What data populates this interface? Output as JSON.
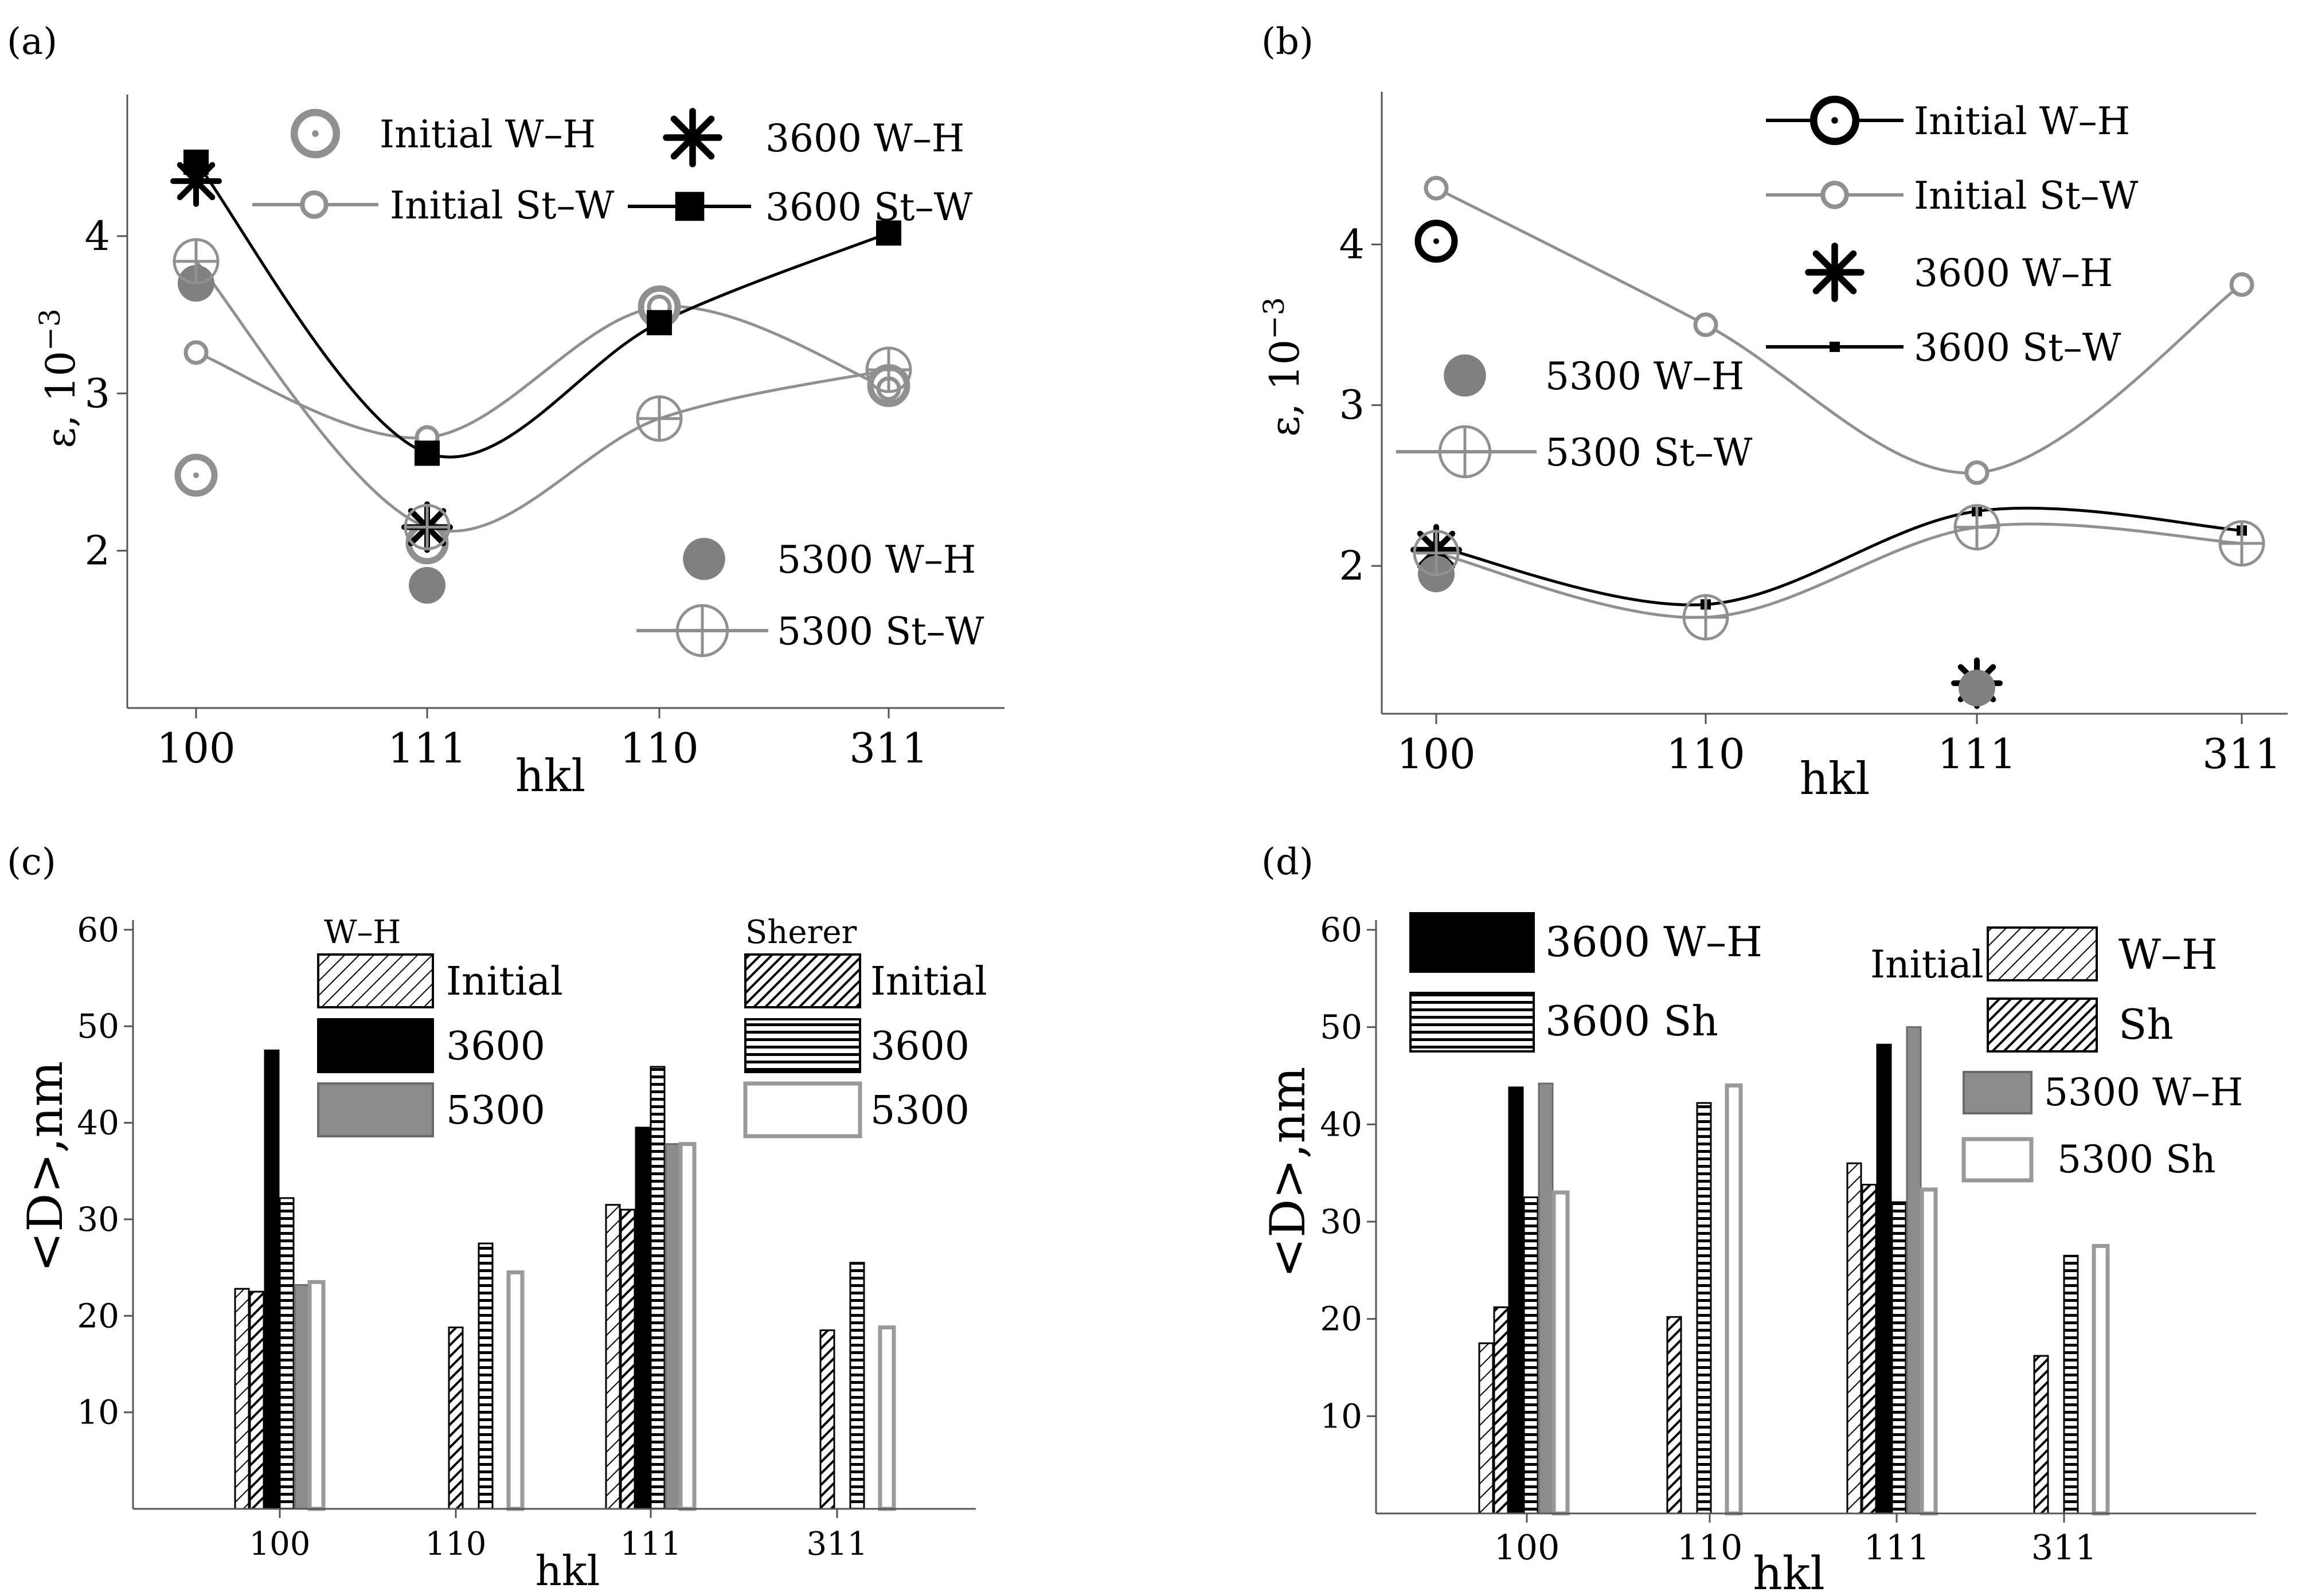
{
  "chart_data": [
    {
      "panel": "(a)",
      "type": "line",
      "xlabel": "hkl",
      "ylabel_base": "ε, 10",
      "ylabel_exp": "−3",
      "categories": [
        "100",
        "111",
        "110",
        "311"
      ],
      "ylim": [
        1.0,
        4.9
      ],
      "yticks": [
        2,
        3,
        4
      ],
      "series": [
        {
          "name": "Initial W–H",
          "marker": "ring-dot",
          "line": false,
          "color": "#909090",
          "values": [
            2.48,
            2.05,
            3.55,
            3.05
          ]
        },
        {
          "name": "3600  W–H",
          "marker": "asterisk",
          "line": false,
          "color": "#000000",
          "values": [
            4.35,
            2.15,
            null,
            null
          ]
        },
        {
          "name": "Initial St–W",
          "marker": "open-circle",
          "line": true,
          "color": "#909090",
          "values": [
            3.26,
            2.72,
            3.55,
            3.03
          ]
        },
        {
          "name": "3600  St–W",
          "marker": "square",
          "line": true,
          "color": "#000000",
          "values": [
            4.47,
            2.62,
            3.45,
            4.02
          ]
        },
        {
          "name": "5300 W–H",
          "marker": "filled-circle",
          "line": false,
          "color": "#808080",
          "values": [
            3.7,
            1.78,
            null,
            null
          ]
        },
        {
          "name": "5300  St–W",
          "marker": "circle-plus",
          "line": true,
          "color": "#909090",
          "values": [
            3.84,
            2.15,
            2.84,
            3.15
          ]
        }
      ]
    },
    {
      "panel": "(b)",
      "type": "line",
      "xlabel": "hkl",
      "ylabel_base": "ε, 10",
      "ylabel_exp": "−3",
      "categories": [
        "100",
        "110",
        "111",
        "311"
      ],
      "ylim": [
        1.08,
        4.95
      ],
      "yticks": [
        2,
        3,
        4
      ],
      "series": [
        {
          "name": "Initial W–H",
          "marker": "ring-dot",
          "line": true,
          "color": "#000000",
          "values": [
            4.02,
            null,
            null,
            null
          ]
        },
        {
          "name": "Initial St–W",
          "marker": "open-circle",
          "line": true,
          "color": "#909090",
          "values": [
            4.35,
            3.5,
            2.58,
            3.75
          ]
        },
        {
          "name": "3600  W–H",
          "marker": "asterisk",
          "line": false,
          "color": "#000000",
          "values": [
            2.1,
            null,
            1.27,
            null
          ]
        },
        {
          "name": "3600  St–W",
          "marker": "small-square",
          "line": true,
          "color": "#000000",
          "values": [
            2.12,
            1.76,
            2.34,
            2.22
          ]
        },
        {
          "name": "5300 W–H",
          "marker": "filled-circle",
          "line": false,
          "color": "#808080",
          "values": [
            1.95,
            null,
            1.24,
            null
          ]
        },
        {
          "name": "5300  St–W",
          "marker": "circle-plus",
          "line": true,
          "color": "#909090",
          "values": [
            2.08,
            1.68,
            2.24,
            2.14
          ]
        }
      ]
    },
    {
      "panel": "(c)",
      "type": "bar",
      "xlabel": "hkl",
      "ylabel": "<D>,nm",
      "categories": [
        "100",
        "110",
        "111",
        "311"
      ],
      "ylim": [
        0,
        61
      ],
      "yticks": [
        10,
        20,
        30,
        40,
        50,
        60
      ],
      "legend_groups": [
        {
          "title": "W–H",
          "entries": [
            "Initial",
            "3600",
            "5300"
          ]
        },
        {
          "title": "Sherer",
          "entries": [
            "Initial",
            "3600",
            "5300"
          ]
        }
      ],
      "series": [
        {
          "name": "W–H Initial",
          "style": "hatch-light",
          "values": [
            22.8,
            null,
            31.5,
            null
          ]
        },
        {
          "name": "Sherer Initial",
          "style": "hatch-dark",
          "values": [
            22.5,
            18.8,
            31.0,
            18.5
          ]
        },
        {
          "name": "W–H 3600",
          "style": "solid-black",
          "values": [
            47.5,
            null,
            39.5,
            null
          ]
        },
        {
          "name": "Sherer 3600",
          "style": "horizontal-lines",
          "values": [
            32.2,
            27.5,
            45.8,
            25.5
          ]
        },
        {
          "name": "W–H 5300",
          "style": "solid-gray",
          "values": [
            23.2,
            null,
            37.8,
            null
          ]
        },
        {
          "name": "Sherer 5300",
          "style": "outline-gray",
          "values": [
            23.5,
            24.5,
            37.8,
            18.8
          ]
        }
      ]
    },
    {
      "panel": "(d)",
      "type": "bar",
      "xlabel": "hkl",
      "ylabel": "<D>,nm",
      "categories": [
        "100",
        "110",
        "111",
        "311"
      ],
      "ylim": [
        0,
        61
      ],
      "yticks": [
        10,
        20,
        30,
        40,
        50,
        60
      ],
      "legend_labels": {
        "initial_prefix": "Initial",
        "wh": "W–H",
        "sh": "Sh",
        "b3600wh": "3600 W–H",
        "b3600sh": "3600 Sh",
        "b5300wh": "5300 W–H",
        "b5300sh": "5300 Sh"
      },
      "series": [
        {
          "name": "Initial W–H",
          "style": "hatch-light",
          "values": [
            17.5,
            null,
            36.0,
            null
          ]
        },
        {
          "name": "Initial Sh",
          "style": "hatch-dark",
          "values": [
            21.2,
            20.2,
            33.8,
            16.2
          ]
        },
        {
          "name": "3600 W–H",
          "style": "solid-black",
          "values": [
            43.8,
            null,
            48.2,
            null
          ]
        },
        {
          "name": "3600 Sh",
          "style": "horizontal-lines",
          "values": [
            32.5,
            42.2,
            32.0,
            26.5
          ]
        },
        {
          "name": "5300 W–H",
          "style": "solid-gray",
          "values": [
            44.2,
            null,
            50.0,
            null
          ]
        },
        {
          "name": "5300 Sh",
          "style": "outline-gray",
          "values": [
            33.0,
            44.0,
            33.3,
            27.5
          ]
        }
      ]
    }
  ]
}
